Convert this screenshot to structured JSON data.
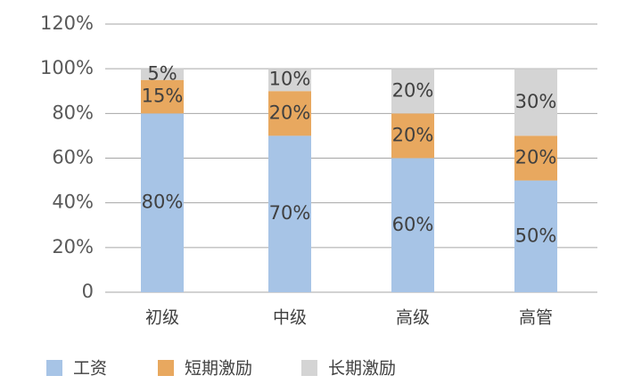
{
  "chart_data": {
    "type": "stacked_bar",
    "categories": [
      "初级",
      "中级",
      "高级",
      "高管"
    ],
    "series": [
      {
        "name": "工资",
        "color": "#a7c4e6",
        "values": [
          80,
          70,
          60,
          50
        ],
        "value_labels": [
          "80%",
          "70%",
          "60%",
          "50%"
        ]
      },
      {
        "name": "短期激励",
        "color": "#e8a85f",
        "values": [
          15,
          20,
          20,
          20
        ],
        "value_labels": [
          "15%",
          "20%",
          "20%",
          "20%"
        ]
      },
      {
        "name": "长期激励",
        "color": "#d4d4d4",
        "values": [
          5,
          10,
          20,
          30
        ],
        "value_labels": [
          "5%",
          "10%",
          "20%",
          "30%"
        ]
      }
    ],
    "ylim": [
      0,
      120
    ],
    "yticks": [
      0,
      {
        "value": 20,
        "label": "20%"
      },
      {
        "value": 40,
        "label": "40%"
      },
      {
        "value": 60,
        "label": "60%"
      },
      {
        "value": 80,
        "label": "80%"
      },
      {
        "value": 100,
        "label": "100%"
      },
      {
        "value": 120,
        "label": "120%"
      }
    ],
    "grid": true,
    "legend": "bottom"
  }
}
